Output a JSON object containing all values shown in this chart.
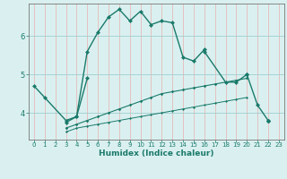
{
  "xlabel": "Humidex (Indice chaleur)",
  "xlim": [
    -0.5,
    23.5
  ],
  "ylim": [
    3.3,
    6.85
  ],
  "yticks": [
    4,
    5,
    6
  ],
  "xticks": [
    0,
    1,
    2,
    3,
    4,
    5,
    6,
    7,
    8,
    9,
    10,
    11,
    12,
    13,
    14,
    15,
    16,
    17,
    18,
    19,
    20,
    21,
    22,
    23
  ],
  "bg_color": "#daf0f0",
  "grid_color_v": "#e8b8b8",
  "line_color": "#1a7a6a",
  "line_main": {
    "x": [
      3,
      4,
      5,
      6,
      7,
      8,
      9,
      10,
      11,
      12,
      13,
      14,
      15,
      16,
      20,
      21,
      22
    ],
    "y": [
      3.75,
      3.9,
      5.6,
      6.1,
      6.5,
      6.7,
      6.4,
      6.65,
      6.3,
      6.4,
      6.35,
      5.45,
      5.35,
      5.65,
      5.0,
      4.2,
      3.8
    ]
  },
  "line_left": {
    "x": [
      0,
      1,
      3,
      4,
      5,
      16,
      18,
      19,
      20
    ],
    "y": [
      4.7,
      4.4,
      3.8,
      3.9,
      4.9,
      5.6,
      4.8,
      4.8,
      5.0
    ]
  },
  "line_bottom": {
    "x": [
      3,
      4,
      5,
      6,
      7,
      8,
      9,
      10,
      11,
      12,
      13,
      14,
      15,
      16,
      17,
      18,
      19,
      20,
      22
    ],
    "y": [
      3.5,
      3.6,
      3.65,
      3.7,
      3.75,
      3.8,
      3.85,
      3.9,
      3.95,
      4.0,
      4.05,
      4.1,
      4.15,
      4.2,
      4.25,
      4.3,
      4.35,
      4.4,
      3.8
    ]
  },
  "line_mid_trend": {
    "x": [
      3,
      4,
      5,
      6,
      7,
      8,
      9,
      10,
      11,
      12,
      13,
      14,
      15,
      16,
      17,
      18,
      19,
      20,
      22
    ],
    "y": [
      3.6,
      3.7,
      3.8,
      3.9,
      4.0,
      4.1,
      4.2,
      4.3,
      4.4,
      4.5,
      4.55,
      4.6,
      4.65,
      4.7,
      4.75,
      4.8,
      4.85,
      4.9,
      3.8
    ]
  }
}
